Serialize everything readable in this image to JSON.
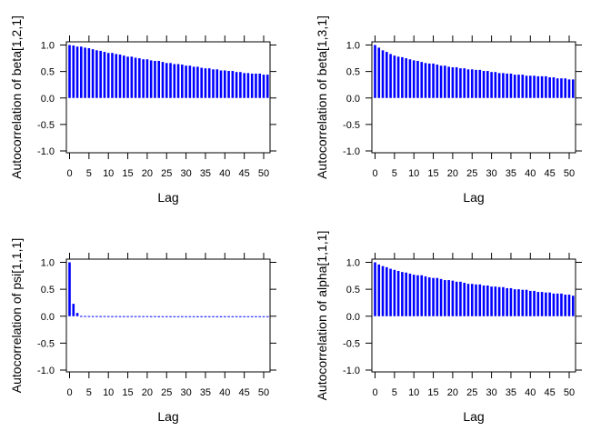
{
  "chart_data": [
    {
      "type": "bar",
      "ylabel": "Autocorrelation of beta[1,2,1]",
      "xlabel": "Lag",
      "x_ticks": [
        "0",
        "5",
        "10",
        "15",
        "20",
        "25",
        "30",
        "35",
        "40",
        "45",
        "50"
      ],
      "y_ticks": [
        "-1.0",
        "-0.5",
        "0.0",
        "0.5",
        "1.0"
      ],
      "ylim": [
        -1,
        1
      ],
      "xlim": [
        0,
        51
      ],
      "bar_color": "#0000FF",
      "lags": [
        0,
        1,
        2,
        3,
        4,
        5,
        6,
        7,
        8,
        9,
        10,
        11,
        12,
        13,
        14,
        15,
        16,
        17,
        18,
        19,
        20,
        21,
        22,
        23,
        24,
        25,
        26,
        27,
        28,
        29,
        30,
        31,
        32,
        33,
        34,
        35,
        36,
        37,
        38,
        39,
        40,
        41,
        42,
        43,
        44,
        45,
        46,
        47,
        48,
        49,
        50,
        51
      ],
      "values": [
        1.0,
        0.99,
        0.97,
        0.97,
        0.95,
        0.94,
        0.92,
        0.9,
        0.89,
        0.87,
        0.85,
        0.85,
        0.83,
        0.82,
        0.8,
        0.78,
        0.78,
        0.76,
        0.75,
        0.73,
        0.73,
        0.71,
        0.7,
        0.7,
        0.68,
        0.66,
        0.66,
        0.64,
        0.64,
        0.63,
        0.61,
        0.61,
        0.59,
        0.59,
        0.57,
        0.56,
        0.56,
        0.54,
        0.54,
        0.52,
        0.52,
        0.51,
        0.51,
        0.49,
        0.49,
        0.47,
        0.47,
        0.46,
        0.46,
        0.46,
        0.44,
        0.44
      ]
    },
    {
      "type": "bar",
      "ylabel": "Autocorrelation of beta[1,3,1]",
      "xlabel": "Lag",
      "x_ticks": [
        "0",
        "5",
        "10",
        "15",
        "20",
        "25",
        "30",
        "35",
        "40",
        "45",
        "50"
      ],
      "y_ticks": [
        "-1.0",
        "-0.5",
        "0.0",
        "0.5",
        "1.0"
      ],
      "ylim": [
        -1,
        1
      ],
      "xlim": [
        0,
        51
      ],
      "bar_color": "#0000FF",
      "lags": [
        0,
        1,
        2,
        3,
        4,
        5,
        6,
        7,
        8,
        9,
        10,
        11,
        12,
        13,
        14,
        15,
        16,
        17,
        18,
        19,
        20,
        21,
        22,
        23,
        24,
        25,
        26,
        27,
        28,
        29,
        30,
        31,
        32,
        33,
        34,
        35,
        36,
        37,
        38,
        39,
        40,
        41,
        42,
        43,
        44,
        45,
        46,
        47,
        48,
        49,
        50,
        51
      ],
      "values": [
        1.0,
        0.95,
        0.9,
        0.87,
        0.83,
        0.8,
        0.78,
        0.77,
        0.75,
        0.73,
        0.71,
        0.7,
        0.68,
        0.66,
        0.65,
        0.65,
        0.63,
        0.61,
        0.61,
        0.59,
        0.58,
        0.58,
        0.56,
        0.56,
        0.54,
        0.54,
        0.53,
        0.53,
        0.51,
        0.51,
        0.49,
        0.49,
        0.47,
        0.47,
        0.46,
        0.46,
        0.44,
        0.44,
        0.44,
        0.42,
        0.42,
        0.42,
        0.41,
        0.41,
        0.41,
        0.39,
        0.39,
        0.37,
        0.37,
        0.37,
        0.35,
        0.35
      ]
    },
    {
      "type": "bar",
      "ylabel": "Autocorrelation of psi[1,1,1]",
      "xlabel": "Lag",
      "x_ticks": [
        "0",
        "5",
        "10",
        "15",
        "20",
        "25",
        "30",
        "35",
        "40",
        "45",
        "50"
      ],
      "y_ticks": [
        "-1.0",
        "-0.5",
        "0.0",
        "0.5",
        "1.0"
      ],
      "ylim": [
        -1,
        1
      ],
      "xlim": [
        0,
        51
      ],
      "bar_color": "#0000FF",
      "lags": [
        0,
        1,
        2,
        3,
        4,
        5,
        6,
        7,
        8,
        9,
        10,
        11,
        12,
        13,
        14,
        15,
        16,
        17,
        18,
        19,
        20,
        21,
        22,
        23,
        24,
        25,
        26,
        27,
        28,
        29,
        30,
        31,
        32,
        33,
        34,
        35,
        36,
        37,
        38,
        39,
        40,
        41,
        42,
        43,
        44,
        45,
        46,
        47,
        48,
        49,
        50,
        51
      ],
      "values": [
        1.0,
        0.23,
        0.06,
        0.005,
        0.004,
        0.003,
        0.002,
        0.003,
        0.002,
        0.003,
        0.002,
        0.001,
        0.002,
        0.001,
        0.002,
        0.001,
        0.002,
        0.001,
        0.002,
        0.001,
        0.002,
        0.001,
        0.001,
        -0.012,
        -0.012,
        -0.004,
        -0.003,
        -0.003,
        -0.004,
        -0.003,
        -0.004,
        -0.012,
        -0.01,
        -0.018,
        -0.01,
        -0.018,
        -0.012,
        -0.01,
        -0.018,
        -0.018,
        -0.005,
        -0.004,
        -0.003,
        -0.004,
        -0.003,
        -0.003,
        -0.004,
        -0.003,
        -0.012,
        -0.004,
        -0.003,
        -0.003
      ]
    },
    {
      "type": "bar",
      "ylabel": "Autocorrelation of alpha[1,1,1]",
      "xlabel": "Lag",
      "x_ticks": [
        "0",
        "5",
        "10",
        "15",
        "20",
        "25",
        "30",
        "35",
        "40",
        "45",
        "50"
      ],
      "y_ticks": [
        "-1.0",
        "-0.5",
        "0.0",
        "0.5",
        "1.0"
      ],
      "ylim": [
        -1,
        1
      ],
      "xlim": [
        0,
        51
      ],
      "bar_color": "#0000FF",
      "lags": [
        0,
        1,
        2,
        3,
        4,
        5,
        6,
        7,
        8,
        9,
        10,
        11,
        12,
        13,
        14,
        15,
        16,
        17,
        18,
        19,
        20,
        21,
        22,
        23,
        24,
        25,
        26,
        27,
        28,
        29,
        30,
        31,
        32,
        33,
        34,
        35,
        36,
        37,
        38,
        39,
        40,
        41,
        42,
        43,
        44,
        45,
        46,
        47,
        48,
        49,
        50,
        51
      ],
      "values": [
        1.0,
        0.96,
        0.93,
        0.91,
        0.88,
        0.86,
        0.84,
        0.82,
        0.81,
        0.79,
        0.77,
        0.76,
        0.76,
        0.74,
        0.72,
        0.71,
        0.71,
        0.69,
        0.67,
        0.67,
        0.66,
        0.64,
        0.64,
        0.62,
        0.6,
        0.6,
        0.59,
        0.59,
        0.57,
        0.57,
        0.55,
        0.55,
        0.54,
        0.54,
        0.52,
        0.52,
        0.5,
        0.5,
        0.49,
        0.49,
        0.47,
        0.47,
        0.45,
        0.45,
        0.44,
        0.44,
        0.42,
        0.42,
        0.42,
        0.4,
        0.4,
        0.38
      ]
    }
  ]
}
